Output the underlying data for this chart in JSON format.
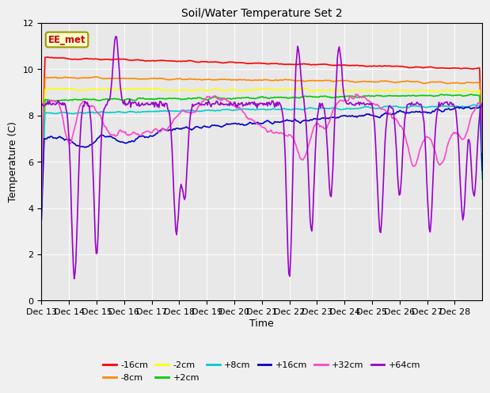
{
  "title": "Soil/Water Temperature Set 2",
  "xlabel": "Time",
  "ylabel": "Temperature (C)",
  "ylim": [
    0,
    12
  ],
  "annotation": "EE_met",
  "plot_bg": "#e8e8e8",
  "fig_bg": "#f0f0f0",
  "x_tick_labels": [
    "Dec 13",
    "Dec 14",
    "Dec 15",
    "Dec 16",
    "Dec 17",
    "Dec 18",
    "Dec 19",
    "Dec 20",
    "Dec 21",
    "Dec 22",
    "Dec 23",
    "Dec 24",
    "Dec 25",
    "Dec 26",
    "Dec 27",
    "Dec 28"
  ],
  "legend_order": [
    "-16cm",
    "-8cm",
    "-2cm",
    "+2cm",
    "+8cm",
    "+16cm",
    "+32cm",
    "+64cm"
  ],
  "colors": {
    "-16cm": "#ff0000",
    "-8cm": "#ff8800",
    "-2cm": "#ffff00",
    "+2cm": "#00cc00",
    "+8cm": "#00cccc",
    "+16cm": "#0000cc",
    "+32cm": "#ff44cc",
    "+64cm": "#9900cc"
  }
}
